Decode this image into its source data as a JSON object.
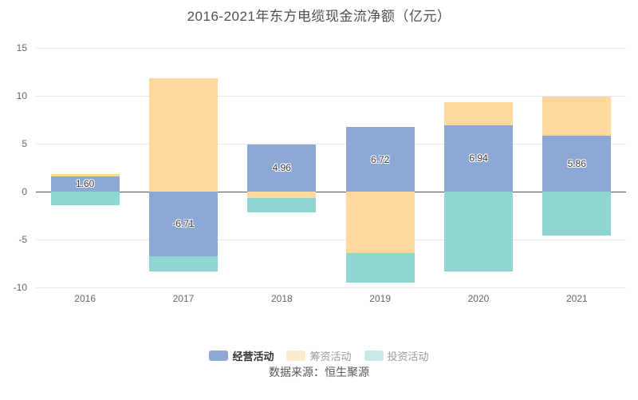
{
  "page": {
    "title": "2016-2021年东方电缆现金流净额（亿元）",
    "source_note": "数据来源：恒生聚源"
  },
  "chart_data": {
    "type": "bar",
    "stacked": true,
    "title": "2016-2021年东方电缆现金流净额（亿元）",
    "unit": "亿元",
    "categories": [
      "2016",
      "2017",
      "2018",
      "2019",
      "2020",
      "2021"
    ],
    "series": [
      {
        "name": "经营活动",
        "color": "#8CA8D5",
        "values": [
          1.6,
          -6.71,
          4.96,
          6.72,
          6.94,
          5.86
        ],
        "data_labels": [
          "1.60",
          "-6.71",
          "4.96",
          "6.72",
          "6.94",
          "5.86"
        ]
      },
      {
        "name": "筹资活动",
        "color": "#FBD89B",
        "values": [
          0.2,
          11.8,
          -0.7,
          -6.4,
          2.4,
          4.1
        ],
        "data_labels": null
      },
      {
        "name": "投资活动",
        "color": "#8FD6D2",
        "values": [
          -1.4,
          -1.6,
          -1.5,
          -3.1,
          -8.3,
          -4.6
        ],
        "data_labels": null
      }
    ],
    "ylim": [
      -10,
      15
    ],
    "yticks": [
      15,
      10,
      5,
      0,
      -5,
      -10
    ],
    "grid": true,
    "grid_color": "#e2e8f4",
    "zero_line_color": "#555555",
    "axis_label_color": "#666666",
    "legend_position": "bottom"
  },
  "legend": {
    "items": [
      {
        "label": "经营活动",
        "emphasized": true
      },
      {
        "label": "筹资活动",
        "emphasized": false
      },
      {
        "label": "投资活动",
        "emphasized": false
      }
    ]
  }
}
